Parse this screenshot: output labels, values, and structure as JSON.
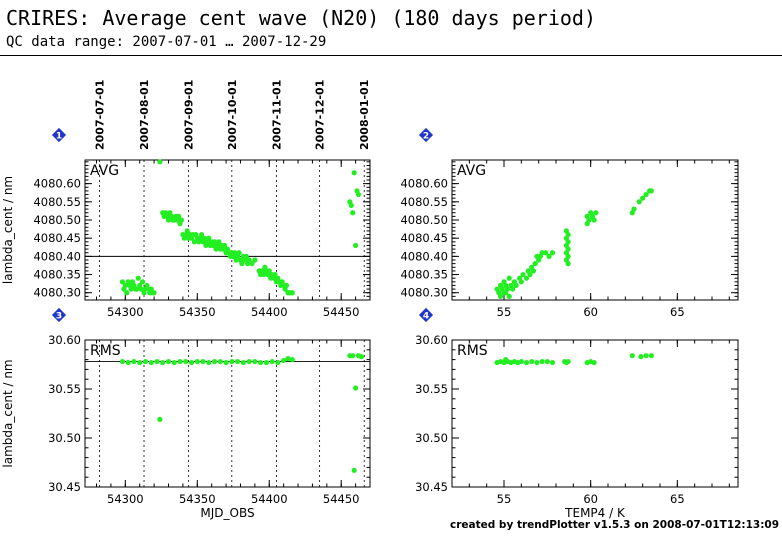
{
  "header": {
    "title": "CRIRES: Average cent wave (N20) (180 days period)",
    "subtitle": "QC data range: 2007-07-01 … 2007-12-29"
  },
  "footer": {
    "credit": "created by trendPlotter v1.5.3 on 2008-07-01T12:13:09"
  },
  "colors": {
    "points": "#22ee22",
    "marker": "#1f35cc",
    "axis": "#000000"
  },
  "chart_data": [
    {
      "id": 1,
      "type": "scatter",
      "panel_label": "AVG",
      "xlabel": "",
      "ylabel": "lambda_cent / nm",
      "xlim": [
        54272,
        54470
      ],
      "ylim": [
        4080.28,
        4080.665
      ],
      "xticks": [
        54300,
        54350,
        54400,
        54450
      ],
      "yticks": [
        4080.3,
        4080.35,
        4080.4,
        4080.45,
        4080.5,
        4080.55,
        4080.6
      ],
      "ytick_labels": [
        "4080.30",
        "4080.35",
        "4080.40",
        "4080.45",
        "4080.50",
        "4080.55",
        "4080.60"
      ],
      "top_date_ticks": [
        {
          "label": "2007-07-01",
          "x": 54282
        },
        {
          "label": "2007-08-01",
          "x": 54313
        },
        {
          "label": "2007-09-01",
          "x": 54344
        },
        {
          "label": "2007-10-01",
          "x": 54374
        },
        {
          "label": "2007-11-01",
          "x": 54405
        },
        {
          "label": "2007-12-01",
          "x": 54435
        },
        {
          "label": "2008-01-01",
          "x": 54466
        }
      ],
      "hline": 4080.4,
      "points": [
        [
          54298,
          4080.33
        ],
        [
          54299,
          4080.31
        ],
        [
          54300,
          4080.32
        ],
        [
          54301,
          4080.3
        ],
        [
          54302,
          4080.33
        ],
        [
          54303,
          4080.32
        ],
        [
          54304,
          4080.31
        ],
        [
          54305,
          4080.33
        ],
        [
          54306,
          4080.32
        ],
        [
          54307,
          4080.31
        ],
        [
          54308,
          4080.31
        ],
        [
          54309,
          4080.34
        ],
        [
          54310,
          4080.32
        ],
        [
          54311,
          4080.31
        ],
        [
          54312,
          4080.33
        ],
        [
          54313,
          4080.3
        ],
        [
          54314,
          4080.31
        ],
        [
          54315,
          4080.32
        ],
        [
          54316,
          4080.31
        ],
        [
          54317,
          4080.3
        ],
        [
          54318,
          4080.31
        ],
        [
          54319,
          4080.3
        ],
        [
          54320,
          4080.3
        ],
        [
          54324,
          4080.66
        ],
        [
          54326,
          4080.52
        ],
        [
          54327,
          4080.51
        ],
        [
          54328,
          4080.52
        ],
        [
          54329,
          4080.51
        ],
        [
          54330,
          4080.5
        ],
        [
          54331,
          4080.52
        ],
        [
          54332,
          4080.51
        ],
        [
          54333,
          4080.5
        ],
        [
          54334,
          4080.5
        ],
        [
          54335,
          4080.51
        ],
        [
          54336,
          4080.5
        ],
        [
          54337,
          4080.51
        ],
        [
          54338,
          4080.49
        ],
        [
          54339,
          4080.5
        ],
        [
          54340,
          4080.46
        ],
        [
          54341,
          4080.45
        ],
        [
          54342,
          4080.46
        ],
        [
          54343,
          4080.47
        ],
        [
          54344,
          4080.45
        ],
        [
          54345,
          4080.46
        ],
        [
          54346,
          4080.45
        ],
        [
          54347,
          4080.46
        ],
        [
          54348,
          4080.44
        ],
        [
          54349,
          4080.46
        ],
        [
          54350,
          4080.45
        ],
        [
          54351,
          4080.44
        ],
        [
          54352,
          4080.45
        ],
        [
          54353,
          4080.46
        ],
        [
          54354,
          4080.44
        ],
        [
          54355,
          4080.45
        ],
        [
          54356,
          4080.43
        ],
        [
          54357,
          4080.44
        ],
        [
          54358,
          4080.45
        ],
        [
          54359,
          4080.43
        ],
        [
          54360,
          4080.44
        ],
        [
          54361,
          4080.43
        ],
        [
          54362,
          4080.44
        ],
        [
          54363,
          4080.42
        ],
        [
          54364,
          4080.43
        ],
        [
          54365,
          4080.44
        ],
        [
          54366,
          4080.42
        ],
        [
          54367,
          4080.43
        ],
        [
          54368,
          4080.42
        ],
        [
          54369,
          4080.43
        ],
        [
          54370,
          4080.41
        ],
        [
          54371,
          4080.42
        ],
        [
          54372,
          4080.41
        ],
        [
          54373,
          4080.4
        ],
        [
          54374,
          4080.41
        ],
        [
          54375,
          4080.4
        ],
        [
          54376,
          4080.41
        ],
        [
          54377,
          4080.39
        ],
        [
          54378,
          4080.4
        ],
        [
          54379,
          4080.41
        ],
        [
          54380,
          4080.39
        ],
        [
          54381,
          4080.38
        ],
        [
          54382,
          4080.4
        ],
        [
          54383,
          4080.39
        ],
        [
          54384,
          4080.4
        ],
        [
          54385,
          4080.38
        ],
        [
          54386,
          4080.39
        ],
        [
          54388,
          4080.38
        ],
        [
          54390,
          4080.39
        ],
        [
          54393,
          4080.36
        ],
        [
          54394,
          4080.35
        ],
        [
          54395,
          4080.36
        ],
        [
          54396,
          4080.35
        ],
        [
          54397,
          4080.37
        ],
        [
          54398,
          4080.36
        ],
        [
          54399,
          4080.35
        ],
        [
          54400,
          4080.36
        ],
        [
          54401,
          4080.34
        ],
        [
          54402,
          4080.35
        ],
        [
          54403,
          4080.34
        ],
        [
          54404,
          4080.35
        ],
        [
          54405,
          4080.33
        ],
        [
          54406,
          4080.34
        ],
        [
          54407,
          4080.33
        ],
        [
          54408,
          4080.32
        ],
        [
          54409,
          4080.33
        ],
        [
          54410,
          4080.32
        ],
        [
          54411,
          4080.31
        ],
        [
          54412,
          4080.32
        ],
        [
          54413,
          4080.3
        ],
        [
          54414,
          4080.3
        ],
        [
          54415,
          4080.3
        ],
        [
          54416,
          4080.3
        ],
        [
          54456,
          4080.55
        ],
        [
          54457,
          4080.54
        ],
        [
          54458,
          4080.52
        ],
        [
          54459,
          4080.63
        ],
        [
          54460,
          4080.43
        ],
        [
          54461,
          4080.58
        ],
        [
          54462,
          4080.57
        ]
      ]
    },
    {
      "id": 2,
      "type": "scatter",
      "panel_label": "AVG",
      "xlabel": "",
      "ylabel": "",
      "xlim": [
        52,
        68.5
      ],
      "ylim": [
        4080.28,
        4080.665
      ],
      "xticks": [
        55,
        60,
        65
      ],
      "yticks": [
        4080.3,
        4080.35,
        4080.4,
        4080.45,
        4080.5,
        4080.55,
        4080.6
      ],
      "ytick_labels": [
        "4080.30",
        "4080.35",
        "4080.40",
        "4080.45",
        "4080.50",
        "4080.55",
        "4080.60"
      ],
      "points": [
        [
          54.6,
          4080.31
        ],
        [
          54.7,
          4080.3
        ],
        [
          54.8,
          4080.32
        ],
        [
          54.8,
          4080.29
        ],
        [
          54.9,
          4080.31
        ],
        [
          55.0,
          4080.3
        ],
        [
          55.0,
          4080.33
        ],
        [
          55.1,
          4080.32
        ],
        [
          55.1,
          4080.3
        ],
        [
          55.2,
          4080.31
        ],
        [
          55.3,
          4080.29
        ],
        [
          55.3,
          4080.34
        ],
        [
          55.4,
          4080.32
        ],
        [
          55.5,
          4080.31
        ],
        [
          55.6,
          4080.33
        ],
        [
          55.7,
          4080.32
        ],
        [
          55.9,
          4080.34
        ],
        [
          56.0,
          4080.33
        ],
        [
          56.1,
          4080.35
        ],
        [
          56.3,
          4080.34
        ],
        [
          56.4,
          4080.36
        ],
        [
          56.5,
          4080.35
        ],
        [
          56.6,
          4080.37
        ],
        [
          56.7,
          4080.36
        ],
        [
          56.8,
          4080.38
        ],
        [
          56.9,
          4080.4
        ],
        [
          57.0,
          4080.39
        ],
        [
          57.1,
          4080.4
        ],
        [
          57.2,
          4080.41
        ],
        [
          57.4,
          4080.41
        ],
        [
          57.6,
          4080.4
        ],
        [
          57.8,
          4080.41
        ],
        [
          58.6,
          4080.39
        ],
        [
          58.6,
          4080.41
        ],
        [
          58.6,
          4080.43
        ],
        [
          58.6,
          4080.45
        ],
        [
          58.6,
          4080.47
        ],
        [
          58.7,
          4080.4
        ],
        [
          58.7,
          4080.42
        ],
        [
          58.7,
          4080.44
        ],
        [
          58.7,
          4080.46
        ],
        [
          58.7,
          4080.38
        ],
        [
          59.8,
          4080.49
        ],
        [
          59.8,
          4080.51
        ],
        [
          59.9,
          4080.5
        ],
        [
          60.0,
          4080.52
        ],
        [
          60.1,
          4080.51
        ],
        [
          60.2,
          4080.5
        ],
        [
          60.3,
          4080.52
        ],
        [
          62.4,
          4080.52
        ],
        [
          62.5,
          4080.53
        ],
        [
          62.8,
          4080.55
        ],
        [
          63.0,
          4080.56
        ],
        [
          63.2,
          4080.57
        ],
        [
          63.4,
          4080.58
        ],
        [
          63.5,
          4080.58
        ]
      ]
    },
    {
      "id": 3,
      "type": "scatter",
      "panel_label": "RMS",
      "xlabel": "MJD_OBS",
      "ylabel": "lambda_cent / nm",
      "xlim": [
        54272,
        54470
      ],
      "ylim": [
        30.45,
        30.6
      ],
      "xticks": [
        54300,
        54350,
        54400,
        54450
      ],
      "yticks": [
        30.45,
        30.5,
        30.55,
        30.6
      ],
      "ytick_labels": [
        "30.45",
        "30.50",
        "30.55",
        "30.60"
      ],
      "vlines": [
        54282,
        54313,
        54344,
        54374,
        54405,
        54435,
        54466
      ],
      "hline": 30.578,
      "points": [
        [
          54298,
          30.578
        ],
        [
          54302,
          30.577
        ],
        [
          54306,
          30.578
        ],
        [
          54310,
          30.577
        ],
        [
          54314,
          30.578
        ],
        [
          54318,
          30.577
        ],
        [
          54322,
          30.578
        ],
        [
          54324,
          30.519
        ],
        [
          54326,
          30.577
        ],
        [
          54330,
          30.578
        ],
        [
          54334,
          30.577
        ],
        [
          54338,
          30.578
        ],
        [
          54342,
          30.578
        ],
        [
          54346,
          30.577
        ],
        [
          54350,
          30.578
        ],
        [
          54354,
          30.578
        ],
        [
          54358,
          30.577
        ],
        [
          54362,
          30.578
        ],
        [
          54366,
          30.578
        ],
        [
          54370,
          30.577
        ],
        [
          54374,
          30.578
        ],
        [
          54378,
          30.578
        ],
        [
          54382,
          30.577
        ],
        [
          54386,
          30.578
        ],
        [
          54390,
          30.578
        ],
        [
          54394,
          30.577
        ],
        [
          54398,
          30.577
        ],
        [
          54402,
          30.578
        ],
        [
          54406,
          30.577
        ],
        [
          54410,
          30.579
        ],
        [
          54413,
          30.581
        ],
        [
          54416,
          30.58
        ],
        [
          54456,
          30.584
        ],
        [
          54458,
          30.584
        ],
        [
          54459,
          30.467
        ],
        [
          54460,
          30.551
        ],
        [
          54462,
          30.584
        ],
        [
          54464,
          30.583
        ]
      ]
    },
    {
      "id": 4,
      "type": "scatter",
      "panel_label": "RMS",
      "xlabel": "TEMP4 / K",
      "ylabel": "",
      "xlim": [
        52,
        68.5
      ],
      "ylim": [
        30.45,
        30.6
      ],
      "xticks": [
        55,
        60,
        65
      ],
      "yticks": [
        30.45,
        30.5,
        30.55,
        30.6
      ],
      "ytick_labels": [
        "30.45",
        "30.50",
        "30.55",
        "30.60"
      ],
      "points": [
        [
          54.6,
          30.577
        ],
        [
          54.8,
          30.578
        ],
        [
          55.0,
          30.577
        ],
        [
          55.1,
          30.58
        ],
        [
          55.2,
          30.578
        ],
        [
          55.4,
          30.577
        ],
        [
          55.6,
          30.578
        ],
        [
          55.8,
          30.577
        ],
        [
          56.0,
          30.578
        ],
        [
          56.3,
          30.577
        ],
        [
          56.6,
          30.578
        ],
        [
          56.9,
          30.577
        ],
        [
          57.2,
          30.578
        ],
        [
          57.5,
          30.578
        ],
        [
          57.8,
          30.577
        ],
        [
          58.5,
          30.578
        ],
        [
          58.6,
          30.577
        ],
        [
          58.7,
          30.578
        ],
        [
          59.8,
          30.577
        ],
        [
          60.0,
          30.578
        ],
        [
          60.2,
          30.577
        ],
        [
          62.4,
          30.584
        ],
        [
          62.9,
          30.583
        ],
        [
          63.2,
          30.584
        ],
        [
          63.5,
          30.584
        ]
      ]
    }
  ]
}
